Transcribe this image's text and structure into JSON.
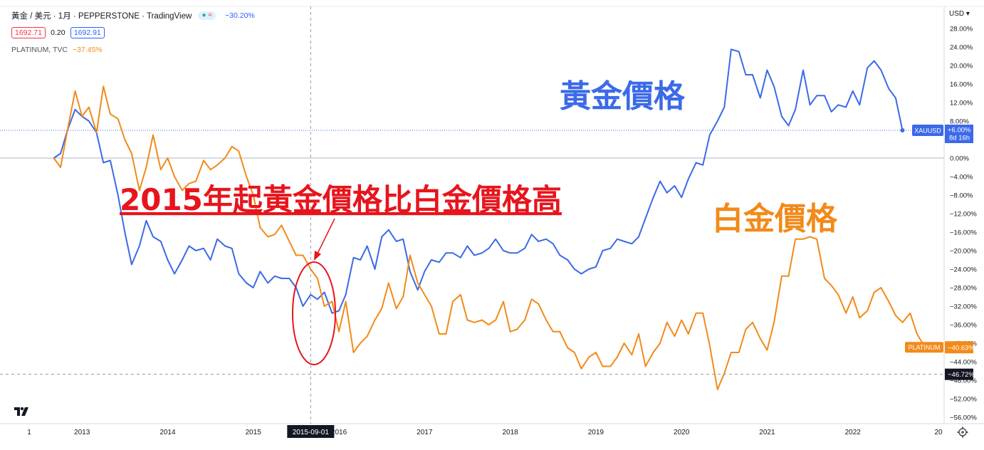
{
  "header": {
    "symbol_line": "黃金 / 美元 · 1月 · PEPPERSTONE · TradingView",
    "gold_change": "−30.20%",
    "bid": "1692.71",
    "spread": "0.20",
    "ask": "1692.91",
    "platinum_label": "PLATINUM, TVC",
    "platinum_change": "−37.45%",
    "currency_menu": "USD ▾"
  },
  "annotations": {
    "headline": "2015年起黃金價格比白金價格高",
    "gold_label": "黃金價格",
    "platinum_label": "白金價格",
    "crosshair_date": "2015-09-01"
  },
  "price_tags": {
    "gold_symbol": "XAUUSD",
    "gold_value": "+6.00%",
    "gold_countdown": "8d 16h",
    "platinum_symbol": "PLATINUM",
    "platinum_value": "−40.63%",
    "crosshair_value": "−46.72%"
  },
  "colors": {
    "gold": "#3b6ae8",
    "platinum": "#f28a19",
    "headline": "#e8141c",
    "crosshair_tag": "#131722"
  },
  "chart_data": {
    "type": "line",
    "x_unit": "year",
    "y_unit": "percent change",
    "x_ticks": [
      {
        "v": 2013,
        "label": "2013"
      },
      {
        "v": 2014,
        "label": "2014"
      },
      {
        "v": 2015,
        "label": "2015"
      },
      {
        "v": 2016,
        "label": "2016"
      },
      {
        "v": 2017,
        "label": "2017"
      },
      {
        "v": 2018,
        "label": "2018"
      },
      {
        "v": 2019,
        "label": "2019"
      },
      {
        "v": 2020,
        "label": "2020"
      },
      {
        "v": 2021,
        "label": "2021"
      },
      {
        "v": 2022,
        "label": "2022"
      }
    ],
    "x_edge_labels": {
      "left": "1",
      "right": "20"
    },
    "y_ticks": [
      28,
      24,
      20,
      16,
      12,
      8,
      0,
      -4,
      -8,
      -12,
      -16,
      -20,
      -24,
      -28,
      -32,
      -36,
      -40,
      -44,
      -48,
      -52,
      -56
    ],
    "ylim": [
      -57,
      29
    ],
    "xlim": [
      2012.4,
      2023.0
    ],
    "series": [
      {
        "name": "XAUUSD",
        "color": "#3b6ae8",
        "points": [
          [
            2012.67,
            0
          ],
          [
            2012.75,
            1
          ],
          [
            2012.83,
            6
          ],
          [
            2012.92,
            10.5
          ],
          [
            2013.0,
            9
          ],
          [
            2013.08,
            8
          ],
          [
            2013.17,
            5.5
          ],
          [
            2013.25,
            -1
          ],
          [
            2013.33,
            -0.5
          ],
          [
            2013.42,
            -8
          ],
          [
            2013.5,
            -16
          ],
          [
            2013.58,
            -23
          ],
          [
            2013.67,
            -19
          ],
          [
            2013.75,
            -13.5
          ],
          [
            2013.83,
            -17
          ],
          [
            2013.92,
            -18
          ],
          [
            2014.0,
            -22
          ],
          [
            2014.08,
            -25
          ],
          [
            2014.17,
            -22
          ],
          [
            2014.25,
            -19
          ],
          [
            2014.33,
            -20
          ],
          [
            2014.42,
            -19.5
          ],
          [
            2014.5,
            -22
          ],
          [
            2014.58,
            -17.5
          ],
          [
            2014.67,
            -19
          ],
          [
            2014.75,
            -19.5
          ],
          [
            2014.83,
            -25
          ],
          [
            2014.92,
            -27
          ],
          [
            2015.0,
            -28
          ],
          [
            2015.08,
            -24.5
          ],
          [
            2015.17,
            -27
          ],
          [
            2015.25,
            -25.5
          ],
          [
            2015.33,
            -26
          ],
          [
            2015.42,
            -26
          ],
          [
            2015.5,
            -28
          ],
          [
            2015.58,
            -32
          ],
          [
            2015.67,
            -29.5
          ],
          [
            2015.75,
            -30.5
          ],
          [
            2015.83,
            -29
          ],
          [
            2015.92,
            -33.5
          ],
          [
            2016.0,
            -33
          ],
          [
            2016.08,
            -29.5
          ],
          [
            2016.17,
            -21.5
          ],
          [
            2016.25,
            -22
          ],
          [
            2016.33,
            -19
          ],
          [
            2016.42,
            -24
          ],
          [
            2016.5,
            -17
          ],
          [
            2016.58,
            -15.5
          ],
          [
            2016.67,
            -18
          ],
          [
            2016.75,
            -17.5
          ],
          [
            2016.83,
            -24.5
          ],
          [
            2016.92,
            -28.5
          ],
          [
            2017.0,
            -24.5
          ],
          [
            2017.08,
            -22
          ],
          [
            2017.17,
            -22.5
          ],
          [
            2017.25,
            -20.5
          ],
          [
            2017.33,
            -20.5
          ],
          [
            2017.42,
            -21.5
          ],
          [
            2017.5,
            -19
          ],
          [
            2017.58,
            -21
          ],
          [
            2017.67,
            -20.5
          ],
          [
            2017.75,
            -19.5
          ],
          [
            2017.83,
            -17.5
          ],
          [
            2017.92,
            -20
          ],
          [
            2018.0,
            -20.5
          ],
          [
            2018.08,
            -20.5
          ],
          [
            2018.17,
            -19.5
          ],
          [
            2018.25,
            -16.5
          ],
          [
            2018.33,
            -18
          ],
          [
            2018.42,
            -17.5
          ],
          [
            2018.5,
            -18.5
          ],
          [
            2018.58,
            -21
          ],
          [
            2018.67,
            -22
          ],
          [
            2018.75,
            -24
          ],
          [
            2018.83,
            -25
          ],
          [
            2018.92,
            -24
          ],
          [
            2019.0,
            -23.5
          ],
          [
            2019.08,
            -20
          ],
          [
            2019.17,
            -19.5
          ],
          [
            2019.25,
            -17.5
          ],
          [
            2019.33,
            -18
          ],
          [
            2019.42,
            -18.5
          ],
          [
            2019.5,
            -17
          ],
          [
            2019.58,
            -13
          ],
          [
            2019.67,
            -8.5
          ],
          [
            2019.75,
            -5
          ],
          [
            2019.83,
            -7.5
          ],
          [
            2019.92,
            -6
          ],
          [
            2020.0,
            -8.5
          ],
          [
            2020.08,
            -4.5
          ],
          [
            2020.17,
            -1
          ],
          [
            2020.25,
            -1.5
          ],
          [
            2020.33,
            5
          ],
          [
            2020.42,
            8
          ],
          [
            2020.5,
            11
          ],
          [
            2020.58,
            23.5
          ],
          [
            2020.67,
            23
          ],
          [
            2020.75,
            18
          ],
          [
            2020.83,
            18
          ],
          [
            2020.92,
            13
          ],
          [
            2021.0,
            19
          ],
          [
            2021.08,
            15.5
          ],
          [
            2021.17,
            9
          ],
          [
            2021.25,
            7
          ],
          [
            2021.33,
            10.5
          ],
          [
            2021.42,
            19
          ],
          [
            2021.5,
            11.5
          ],
          [
            2021.58,
            13.5
          ],
          [
            2021.67,
            13.5
          ],
          [
            2021.75,
            10
          ],
          [
            2021.83,
            11.5
          ],
          [
            2021.92,
            11
          ],
          [
            2022.0,
            14.5
          ],
          [
            2022.08,
            11.5
          ],
          [
            2022.17,
            19.5
          ],
          [
            2022.25,
            21
          ],
          [
            2022.33,
            19
          ],
          [
            2022.42,
            15
          ],
          [
            2022.5,
            13
          ],
          [
            2022.58,
            6
          ]
        ]
      },
      {
        "name": "PLATINUM",
        "color": "#f28a19",
        "points": [
          [
            2012.67,
            0
          ],
          [
            2012.75,
            -2
          ],
          [
            2012.83,
            6
          ],
          [
            2012.92,
            14.5
          ],
          [
            2013.0,
            9
          ],
          [
            2013.08,
            11
          ],
          [
            2013.17,
            5.5
          ],
          [
            2013.25,
            15.5
          ],
          [
            2013.33,
            9.5
          ],
          [
            2013.42,
            8.5
          ],
          [
            2013.5,
            4
          ],
          [
            2013.58,
            1
          ],
          [
            2013.67,
            -7
          ],
          [
            2013.75,
            -2
          ],
          [
            2013.83,
            5
          ],
          [
            2013.92,
            -2.5
          ],
          [
            2014.0,
            0
          ],
          [
            2014.08,
            -4
          ],
          [
            2014.17,
            -7
          ],
          [
            2014.25,
            -5.5
          ],
          [
            2014.33,
            -5
          ],
          [
            2014.42,
            -0.5
          ],
          [
            2014.5,
            -2.5
          ],
          [
            2014.58,
            -1.5
          ],
          [
            2014.67,
            0
          ],
          [
            2014.75,
            2.5
          ],
          [
            2014.83,
            1.5
          ],
          [
            2014.92,
            -4
          ],
          [
            2015.0,
            -8
          ],
          [
            2015.08,
            -15
          ],
          [
            2015.17,
            -17
          ],
          [
            2015.25,
            -16.5
          ],
          [
            2015.33,
            -14.5
          ],
          [
            2015.42,
            -18
          ],
          [
            2015.5,
            -21
          ],
          [
            2015.58,
            -21
          ],
          [
            2015.67,
            -24
          ],
          [
            2015.75,
            -26
          ],
          [
            2015.83,
            -32
          ],
          [
            2015.92,
            -31
          ],
          [
            2016.0,
            -37.5
          ],
          [
            2016.08,
            -31
          ],
          [
            2016.17,
            -42
          ],
          [
            2016.25,
            -40
          ],
          [
            2016.33,
            -38.5
          ],
          [
            2016.42,
            -35
          ],
          [
            2016.5,
            -32.5
          ],
          [
            2016.58,
            -27
          ],
          [
            2016.67,
            -32.5
          ],
          [
            2016.75,
            -30
          ],
          [
            2016.83,
            -21
          ],
          [
            2016.92,
            -27
          ],
          [
            2017.0,
            -29.5
          ],
          [
            2017.08,
            -32
          ],
          [
            2017.17,
            -38
          ],
          [
            2017.25,
            -38
          ],
          [
            2017.33,
            -31
          ],
          [
            2017.42,
            -29.5
          ],
          [
            2017.5,
            -35
          ],
          [
            2017.58,
            -35.5
          ],
          [
            2017.67,
            -35
          ],
          [
            2017.75,
            -36
          ],
          [
            2017.83,
            -35
          ],
          [
            2017.92,
            -31
          ],
          [
            2018.0,
            -37.5
          ],
          [
            2018.08,
            -37
          ],
          [
            2018.17,
            -35
          ],
          [
            2018.25,
            -30.5
          ],
          [
            2018.33,
            -31.5
          ],
          [
            2018.42,
            -35
          ],
          [
            2018.5,
            -37.5
          ],
          [
            2018.58,
            -37.5
          ],
          [
            2018.67,
            -41
          ],
          [
            2018.75,
            -42
          ],
          [
            2018.83,
            -45.5
          ],
          [
            2018.92,
            -43
          ],
          [
            2019.0,
            -42
          ],
          [
            2019.08,
            -45
          ],
          [
            2019.17,
            -45
          ],
          [
            2019.25,
            -43
          ],
          [
            2019.33,
            -40
          ],
          [
            2019.42,
            -42.5
          ],
          [
            2019.5,
            -38
          ],
          [
            2019.58,
            -45
          ],
          [
            2019.67,
            -42
          ],
          [
            2019.75,
            -40
          ],
          [
            2019.83,
            -35.5
          ],
          [
            2019.92,
            -38.5
          ],
          [
            2020.0,
            -35
          ],
          [
            2020.08,
            -38
          ],
          [
            2020.17,
            -33.5
          ],
          [
            2020.25,
            -33.5
          ],
          [
            2020.33,
            -40.5
          ],
          [
            2020.42,
            -50
          ],
          [
            2020.5,
            -46.5
          ],
          [
            2020.58,
            -42
          ],
          [
            2020.67,
            -42
          ],
          [
            2020.75,
            -37
          ],
          [
            2020.83,
            -35.5
          ],
          [
            2020.92,
            -39
          ],
          [
            2021.0,
            -41.5
          ],
          [
            2021.08,
            -35.5
          ],
          [
            2021.17,
            -25.5
          ],
          [
            2021.25,
            -25.5
          ],
          [
            2021.33,
            -17.5
          ],
          [
            2021.42,
            -17.5
          ],
          [
            2021.5,
            -17
          ],
          [
            2021.58,
            -17.5
          ],
          [
            2021.67,
            -26
          ],
          [
            2021.75,
            -27.5
          ],
          [
            2021.83,
            -29.5
          ],
          [
            2021.92,
            -33.5
          ],
          [
            2022.0,
            -30
          ],
          [
            2022.08,
            -34.5
          ],
          [
            2022.17,
            -33
          ],
          [
            2022.25,
            -29
          ],
          [
            2022.33,
            -28
          ],
          [
            2022.42,
            -31
          ],
          [
            2022.5,
            -34
          ],
          [
            2022.58,
            -35.5
          ],
          [
            2022.67,
            -33.5
          ],
          [
            2022.75,
            -38
          ],
          [
            2022.83,
            -40.5
          ]
        ]
      }
    ]
  }
}
